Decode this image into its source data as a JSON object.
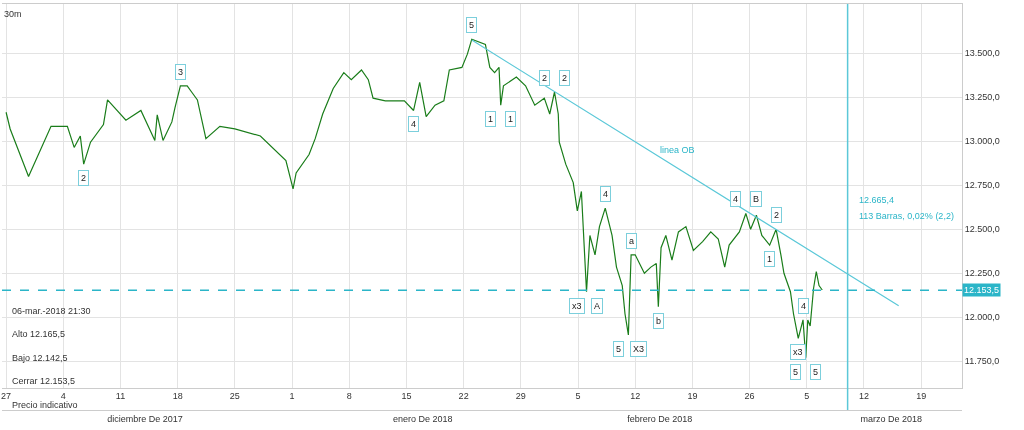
{
  "chart_data": {
    "type": "line",
    "title": "30m",
    "x": [
      "2017-11-27T00:00",
      "2017-11-27T12:00",
      "2017-11-29T18:00",
      "2017-12-02T12:00",
      "2017-12-04T12:00",
      "2017-12-05T08:00",
      "2017-12-06T02:00",
      "2017-12-06T12:00",
      "2017-12-07T08:00",
      "2017-12-08T22:00",
      "2017-12-09T10:00",
      "2017-12-11T16:00",
      "2017-12-13T12:00",
      "2017-12-15T05:00",
      "2017-12-15T12:00",
      "2017-12-16T05:00",
      "2017-12-17T07:00",
      "2017-12-17T16:00",
      "2017-12-18T08:00",
      "2017-12-19T04:00",
      "2017-12-19T17:00",
      "2017-12-20T10:00",
      "2017-12-21T11:00",
      "2017-12-23T04:00",
      "2017-12-25T00:00",
      "2017-12-28T03:00",
      "2017-12-31T06:00",
      "2018-01-01T03:00",
      "2018-01-01T12:00",
      "2018-01-03T02:00",
      "2018-01-03T20:00",
      "2018-01-04T18:00",
      "2018-01-06T01:00",
      "2018-01-07T08:00",
      "2018-01-08T06:00",
      "2018-01-09T12:00",
      "2018-01-10T08:00",
      "2018-01-10T22:00",
      "2018-01-12T10:00",
      "2018-01-14T18:00",
      "2018-01-15T21:00",
      "2018-01-16T15:00",
      "2018-01-17T10:00",
      "2018-01-18T12:00",
      "2018-01-19T14:00",
      "2018-01-20T06:00",
      "2018-01-21T19:00",
      "2018-01-22T11:00",
      "2018-01-23T00:00",
      "2018-01-24T16:00",
      "2018-01-25T05:00",
      "2018-01-25T19:00",
      "2018-01-26T08:00",
      "2018-01-26T13:00",
      "2018-01-26T21:00",
      "2018-01-28T11:00",
      "2018-01-29T14:00",
      "2018-01-30T17:00",
      "2018-01-31T21:00",
      "2018-02-01T13:00",
      "2018-02-02T03:00",
      "2018-02-02T14:00",
      "2018-02-02T17:00",
      "2018-02-03T12:00",
      "2018-02-04T10:00",
      "2018-02-04T22:00",
      "2018-02-05T10:00",
      "2018-02-06T01:00",
      "2018-02-06T11:00",
      "2018-02-07T02:00",
      "2018-02-07T15:00",
      "2018-02-08T08:00",
      "2018-02-09T04:00",
      "2018-02-09T17:00",
      "2018-02-10T10:00",
      "2018-02-10T18:00",
      "2018-02-11T04:00",
      "2018-02-11T12:00",
      "2018-02-12T00:00",
      "2018-02-13T03:00",
      "2018-02-13T22:00",
      "2018-02-14T14:00",
      "2018-02-14T20:00",
      "2018-02-15T04:00",
      "2018-02-15T18:00",
      "2018-02-16T12:00",
      "2018-02-17T07:00",
      "2018-02-18T05:00",
      "2018-02-19T03:00",
      "2018-02-20T06:00",
      "2018-02-21T06:00",
      "2018-02-22T04:00",
      "2018-02-22T23:00",
      "2018-02-23T12:00",
      "2018-02-24T18:00",
      "2018-02-25T13:00",
      "2018-02-26T03:00",
      "2018-02-26T20:00",
      "2018-02-27T12:00",
      "2018-02-28T11:00",
      "2018-03-01T06:00",
      "2018-03-01T20:00",
      "2018-03-02T05:00",
      "2018-03-03T00:00",
      "2018-03-03T09:00",
      "2018-03-03T23:00",
      "2018-03-04T13:00",
      "2018-03-04T21:00",
      "2018-03-05T03:00",
      "2018-03-05T10:00",
      "2018-03-05T20:00",
      "2018-03-06T04:00",
      "2018-03-06T12:00",
      "2018-03-06T21:30"
    ],
    "series": [
      {
        "color": "#1a7d1a",
        "values": [
          13165,
          13070,
          12800,
          13085,
          13085,
          12965,
          13030,
          12870,
          12995,
          13095,
          13235,
          13120,
          13175,
          13005,
          13150,
          13005,
          13110,
          13190,
          13315,
          13315,
          13280,
          13235,
          13015,
          13085,
          13070,
          13030,
          12890,
          12730,
          12820,
          12925,
          13015,
          13155,
          13300,
          13390,
          13350,
          13405,
          13350,
          13245,
          13230,
          13230,
          13175,
          13335,
          13140,
          13205,
          13230,
          13405,
          13420,
          13495,
          13580,
          13550,
          13420,
          13390,
          13420,
          13205,
          13315,
          13365,
          13315,
          13205,
          13245,
          13155,
          13280,
          13155,
          12995,
          12870,
          12765,
          12605,
          12715,
          12145,
          12465,
          12355,
          12515,
          12620,
          12465,
          12285,
          12180,
          12020,
          11900,
          12355,
          12355,
          12250,
          12285,
          12305,
          12060,
          12395,
          12465,
          12325,
          12485,
          12515,
          12380,
          12430,
          12485,
          12445,
          12285,
          12410,
          12485,
          12590,
          12500,
          12580,
          12465,
          12410,
          12500,
          12355,
          12250,
          12145,
          12020,
          11880,
          11985,
          11770,
          11985,
          11950,
          12165,
          12260,
          12180,
          12155
        ]
      },
      {
        "type": "line",
        "color": "#5bc8d8",
        "x": [
          "2018-01-23T00:00",
          "2018-02-13T17:00",
          "2018-03-16T06:00"
        ],
        "values": [
          13575,
          12948,
          12065
        ]
      }
    ],
    "x2lim": [
      "2017-11-26T12:00",
      "2018-03-24T00:00"
    ],
    "x2ticks": [
      {
        "value": "2017-12-14",
        "label": "diciembre De 2017"
      },
      {
        "value": "2018-01-17",
        "label": "enero De 2018"
      },
      {
        "value": "2018-02-15",
        "label": "febrero De 2018"
      },
      {
        "value": "2018-03-15T08:00",
        "label": "marzo De 2018"
      }
    ],
    "xlim": [
      "2017-11-26T12:00",
      "2018-03-24T00:00"
    ],
    "xticks": [
      {
        "value": "2017-11-27",
        "label": "27"
      },
      {
        "value": "2017-12-04",
        "label": "4"
      },
      {
        "value": "2017-12-11",
        "label": "11"
      },
      {
        "value": "2017-12-18",
        "label": "18"
      },
      {
        "value": "2017-12-25",
        "label": "25"
      },
      {
        "value": "2018-01-01",
        "label": "1"
      },
      {
        "value": "2018-01-08",
        "label": "8"
      },
      {
        "value": "2018-01-15",
        "label": "15"
      },
      {
        "value": "2018-01-22",
        "label": "22"
      },
      {
        "value": "2018-01-29",
        "label": "29"
      },
      {
        "value": "2018-02-05",
        "label": "5"
      },
      {
        "value": "2018-02-12",
        "label": "12"
      },
      {
        "value": "2018-02-19",
        "label": "19"
      },
      {
        "value": "2018-02-26",
        "label": "26"
      },
      {
        "value": "2018-03-05",
        "label": "5"
      },
      {
        "value": "2018-03-12",
        "label": "12"
      },
      {
        "value": "2018-03-19",
        "label": "19"
      }
    ],
    "ylim": [
      11600,
      13780
    ],
    "yticks": [
      {
        "value": 11750,
        "label": "11.750,0"
      },
      {
        "value": 12000,
        "label": "12.000,0"
      },
      {
        "value": 12250,
        "label": "12.250,0"
      },
      {
        "value": 12500,
        "label": "12.500,0"
      },
      {
        "value": 12750,
        "label": "12.750,0"
      },
      {
        "value": 13000,
        "label": "13.000,0"
      },
      {
        "value": 13250,
        "label": "13.250,0"
      },
      {
        "value": 13500,
        "label": "13.500,0"
      }
    ],
    "grid": true,
    "ref_lines": [
      {
        "axis": "y",
        "value": 12153.5,
        "label": "12.153,5",
        "color": "#2bb5c8",
        "line_style": "dashed"
      },
      {
        "axis": "x",
        "value": "2018-03-10",
        "color": "#5bc8d8",
        "line_style": "solid"
      }
    ],
    "annotations": [
      {
        "text": "5",
        "x": "2018-01-23T00:00",
        "y": 13580
      },
      {
        "text": "3",
        "x": "2017-12-18T08:00",
        "y": 13315
      },
      {
        "text": "2",
        "x": "2017-12-06T12:00",
        "y": 12870
      },
      {
        "text": "4",
        "x": "2018-01-15T21:00",
        "y": 13175
      },
      {
        "text": "1",
        "x": "2018-01-26T13:00",
        "y": 13205
      },
      {
        "text": "1",
        "x": "2018-01-26T13:00",
        "y": 13205
      },
      {
        "text": "2",
        "x": "2018-02-02T03:00",
        "y": 13280
      },
      {
        "text": "2",
        "x": "2018-02-02T03:00",
        "y": 13280
      },
      {
        "text": "linea OB",
        "x": "2018-02-13T17:00",
        "y": 12948
      },
      {
        "text": "4",
        "x": "2018-02-08T08:00",
        "y": 12620
      },
      {
        "text": "4",
        "x": "2018-02-25T13:00",
        "y": 12590
      },
      {
        "text": "B",
        "x": "2018-02-25T13:00",
        "y": 12590
      },
      {
        "text": "x3",
        "x": "2018-02-06T01:00",
        "y": 12145
      },
      {
        "text": "A",
        "x": "2018-02-06T01:00",
        "y": 12145
      },
      {
        "text": "5",
        "x": "2018-02-11T04:00",
        "y": 11900
      },
      {
        "text": "X3",
        "x": "2018-02-11T04:00",
        "y": 11900
      },
      {
        "text": "5",
        "x": "2018-03-04T21:00",
        "y": 11770
      },
      {
        "text": "a",
        "x": "2018-02-11T12:00",
        "y": 12355
      },
      {
        "text": "b",
        "x": "2018-02-14T20:00",
        "y": 12060
      },
      {
        "text": "1",
        "x": "2018-02-28T11:00",
        "y": 12410
      },
      {
        "text": "2",
        "x": "2018-03-01T06:00",
        "y": 12500
      },
      {
        "text": "4",
        "x": "2018-03-04T13:00",
        "y": 11985
      },
      {
        "text": "x3",
        "x": "2018-03-03T23:00",
        "y": 11880
      },
      {
        "text": "5",
        "x": "2018-03-04T21:00",
        "y": 11770
      },
      {
        "text": "12.665,4",
        "x": "2018-03-10",
        "y": 12665.4
      },
      {
        "text": "113 Barras, 0,02% (2,2)",
        "x": "2018-03-10",
        "y": 12665.4
      },
      "06-mar.-2018 21:30",
      "Alto 12.165,5",
      "Bajo 12.142,5",
      "Cerrar 12.153,5",
      "Precio indicativo"
    ]
  }
}
